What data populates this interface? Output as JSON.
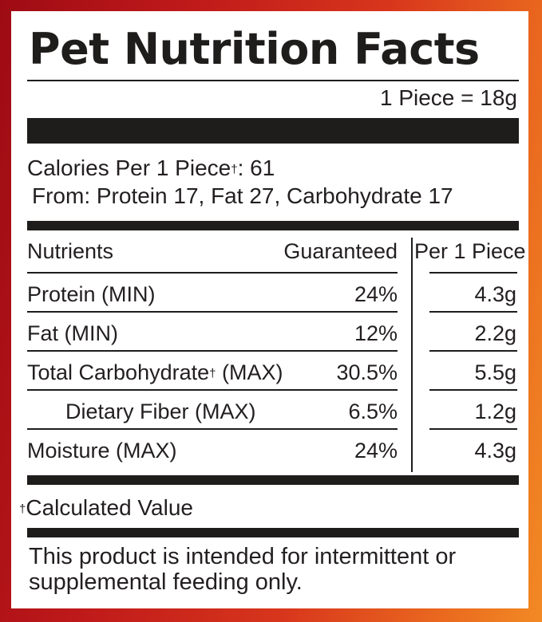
{
  "label": {
    "title": "Pet Nutrition Facts",
    "serving_size": "1 Piece = 18g",
    "calories_text": "Calories Per 1 Piece",
    "calories_mark": "†",
    "calories_value": ": 61",
    "calories_from": "From: Protein 17, Fat 27, Carbohydrate 17",
    "table": {
      "headers": {
        "nutrients": "Nutrients",
        "guaranteed": "Guaranteed",
        "per_piece": "Per 1 Piece"
      },
      "rows": [
        {
          "name": "Protein (MIN)",
          "mark": "",
          "name_suffix": "",
          "guaranteed": "24%",
          "per_piece": "4.3g"
        },
        {
          "name": "Fat (MIN)",
          "mark": "",
          "name_suffix": "",
          "guaranteed": "12%",
          "per_piece": "2.2g"
        },
        {
          "name": "Total Carbohydrate",
          "mark": "†",
          "name_suffix": " (MAX)",
          "guaranteed": "30.5%",
          "per_piece": "5.5g"
        },
        {
          "name": "Dietary Fiber (MAX)",
          "mark": "",
          "name_suffix": "",
          "guaranteed": "6.5%",
          "per_piece": "1.2g"
        },
        {
          "name": "Moisture (MAX)",
          "mark": "",
          "name_suffix": "",
          "guaranteed": "24%",
          "per_piece": "4.3g"
        }
      ]
    },
    "footnote_mark": "†",
    "footnote": "Calculated Value",
    "feeding_note": "This product is intended for intermittent or supplemental feeding only."
  },
  "colors": {
    "ink": "#1f1c1c",
    "border_gradient_start": "#9e0b14",
    "border_gradient_end": "#f28a24",
    "panel": "#ffffff"
  }
}
